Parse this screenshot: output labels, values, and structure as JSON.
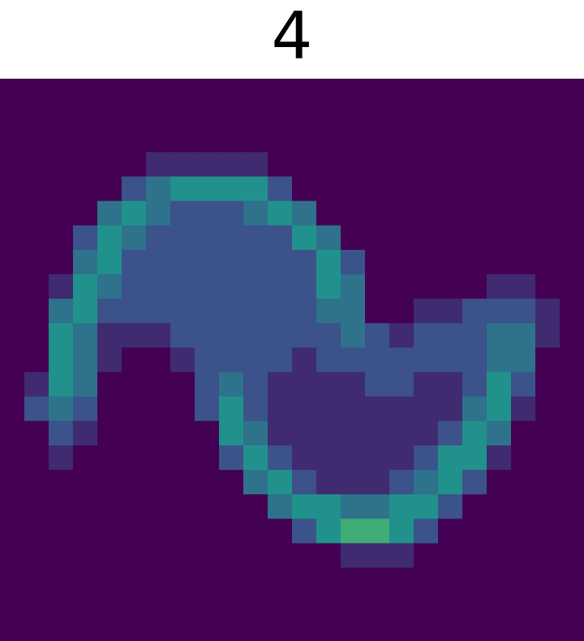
{
  "chart_data": {
    "type": "hist2d",
    "title": "4",
    "clim": [
      0,
      8
    ],
    "colormap": [
      "#440154",
      "#3b528b",
      "#21918c",
      "#5ec962",
      "#fde725"
    ],
    "counts": [
      [
        0,
        0,
        0,
        0,
        0,
        0,
        0,
        0,
        0,
        0,
        0,
        0,
        0,
        0,
        0,
        0,
        0,
        0,
        0,
        0,
        0,
        0,
        0,
        0
      ],
      [
        0,
        0,
        0,
        0,
        0,
        0,
        0,
        0,
        0,
        0,
        0,
        0,
        0,
        0,
        0,
        0,
        0,
        0,
        0,
        0,
        0,
        0,
        0,
        0
      ],
      [
        0,
        0,
        0,
        0,
        0,
        0,
        0,
        0,
        0,
        0,
        0,
        0,
        0,
        0,
        0,
        0,
        0,
        0,
        0,
        0,
        0,
        0,
        0,
        0
      ],
      [
        0,
        0,
        0,
        0,
        0,
        0,
        1,
        1,
        1,
        1,
        1,
        0,
        0,
        0,
        0,
        0,
        0,
        0,
        0,
        0,
        0,
        0,
        0,
        0
      ],
      [
        0,
        0,
        0,
        0,
        0,
        2,
        3,
        4,
        4,
        4,
        4,
        2,
        0,
        0,
        0,
        0,
        0,
        0,
        0,
        0,
        0,
        0,
        0,
        0
      ],
      [
        0,
        0,
        0,
        0,
        3,
        4,
        3,
        2,
        2,
        2,
        3,
        4,
        3,
        0,
        0,
        0,
        0,
        0,
        0,
        0,
        0,
        0,
        0,
        0
      ],
      [
        0,
        0,
        0,
        2,
        4,
        3,
        2,
        2,
        2,
        2,
        2,
        2,
        4,
        3,
        0,
        0,
        0,
        0,
        0,
        0,
        0,
        0,
        0,
        0
      ],
      [
        0,
        0,
        0,
        3,
        4,
        2,
        2,
        2,
        2,
        2,
        2,
        2,
        2,
        4,
        2,
        0,
        0,
        0,
        0,
        0,
        0,
        0,
        0,
        0
      ],
      [
        0,
        0,
        1,
        4,
        3,
        2,
        2,
        2,
        2,
        2,
        2,
        2,
        2,
        4,
        3,
        0,
        0,
        0,
        0,
        0,
        1,
        1,
        0,
        0
      ],
      [
        0,
        0,
        3,
        4,
        2,
        2,
        2,
        2,
        2,
        2,
        2,
        2,
        2,
        3,
        3,
        0,
        0,
        1,
        1,
        2,
        2,
        2,
        1,
        0
      ],
      [
        0,
        0,
        4,
        3,
        1,
        1,
        1,
        2,
        2,
        2,
        2,
        2,
        2,
        2,
        3,
        2,
        1,
        2,
        2,
        2,
        3,
        3,
        1,
        0
      ],
      [
        0,
        0,
        4,
        3,
        1,
        0,
        0,
        1,
        2,
        2,
        2,
        2,
        1,
        2,
        2,
        2,
        2,
        2,
        2,
        2,
        3,
        3,
        0,
        0
      ],
      [
        0,
        1,
        4,
        3,
        0,
        0,
        0,
        0,
        2,
        3,
        2,
        1,
        1,
        1,
        1,
        2,
        2,
        1,
        1,
        2,
        4,
        2,
        0,
        0
      ],
      [
        0,
        2,
        3,
        2,
        0,
        0,
        0,
        0,
        2,
        4,
        2,
        1,
        1,
        1,
        1,
        1,
        1,
        1,
        1,
        3,
        4,
        1,
        0,
        0
      ],
      [
        0,
        0,
        2,
        1,
        0,
        0,
        0,
        0,
        0,
        4,
        3,
        1,
        1,
        1,
        1,
        1,
        1,
        1,
        2,
        4,
        3,
        0,
        0,
        0
      ],
      [
        0,
        0,
        1,
        0,
        0,
        0,
        0,
        0,
        0,
        2,
        4,
        2,
        1,
        1,
        1,
        1,
        1,
        2,
        4,
        4,
        1,
        0,
        0,
        0
      ],
      [
        0,
        0,
        0,
        0,
        0,
        0,
        0,
        0,
        0,
        0,
        3,
        4,
        2,
        1,
        1,
        1,
        2,
        3,
        4,
        2,
        0,
        0,
        0,
        0
      ],
      [
        0,
        0,
        0,
        0,
        0,
        0,
        0,
        0,
        0,
        0,
        0,
        3,
        4,
        4,
        3,
        3,
        4,
        4,
        2,
        0,
        0,
        0,
        0,
        0
      ],
      [
        0,
        0,
        0,
        0,
        0,
        0,
        0,
        0,
        0,
        0,
        0,
        0,
        2,
        4,
        5,
        5,
        4,
        2,
        0,
        0,
        0,
        0,
        0,
        0
      ],
      [
        0,
        0,
        0,
        0,
        0,
        0,
        0,
        0,
        0,
        0,
        0,
        0,
        0,
        0,
        1,
        1,
        1,
        0,
        0,
        0,
        0,
        0,
        0,
        0
      ],
      [
        0,
        0,
        0,
        0,
        0,
        0,
        0,
        0,
        0,
        0,
        0,
        0,
        0,
        0,
        0,
        0,
        0,
        0,
        0,
        0,
        0,
        0,
        0,
        0
      ],
      [
        0,
        0,
        0,
        0,
        0,
        0,
        0,
        0,
        0,
        0,
        0,
        0,
        0,
        0,
        0,
        0,
        0,
        0,
        0,
        0,
        0,
        0,
        0,
        0
      ],
      [
        0,
        0,
        0,
        0,
        0,
        0,
        0,
        0,
        0,
        0,
        0,
        0,
        0,
        0,
        0,
        0,
        0,
        0,
        0,
        0,
        0,
        0,
        0,
        0
      ]
    ]
  }
}
